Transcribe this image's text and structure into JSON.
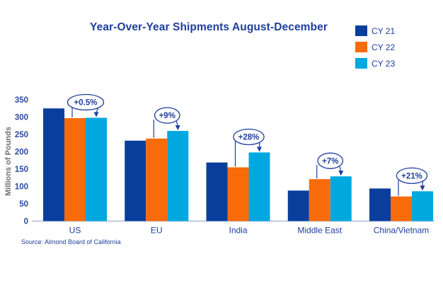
{
  "source": "Source: Almond Board of California",
  "legend": {
    "items": [
      {
        "label": "CY 21",
        "color": "#0a3e9d"
      },
      {
        "label": "CY 22",
        "color": "#f86b0a"
      },
      {
        "label": "CY 23",
        "color": "#00a8e0"
      }
    ]
  },
  "colors": {
    "text_blue": "#1e3e9d",
    "tick_blue": "#2c4a9f",
    "axis_line": "#adb9d8",
    "ylabel_gray": "#6d6e71",
    "annotation_fill": "#ffffff"
  },
  "chart_data": {
    "type": "bar",
    "title": "Year-Over-Year Shipments August-December",
    "categories": [
      "US",
      "EU",
      "India",
      "Middle East",
      "China/Vietnam"
    ],
    "series": [
      {
        "name": "CY 21",
        "color": "#0a3e9d",
        "values": [
          325,
          232,
          169,
          88,
          94
        ]
      },
      {
        "name": "CY 22",
        "color": "#f86b0a",
        "values": [
          297,
          238,
          155,
          121,
          71
        ]
      },
      {
        "name": "CY 23",
        "color": "#00a8e0",
        "values": [
          298,
          260,
          198,
          129,
          86
        ]
      }
    ],
    "annotations": [
      {
        "category": "US",
        "label": "+0.5%"
      },
      {
        "category": "EU",
        "label": "+9%"
      },
      {
        "category": "India",
        "label": "+28%"
      },
      {
        "category": "Middle East",
        "label": "+7%"
      },
      {
        "category": "China/Vietnam",
        "label": "+21%"
      }
    ],
    "xlabel": "",
    "ylabel": "Millions of Pounds",
    "ylim": [
      0,
      350
    ],
    "yticks": [
      0,
      50,
      100,
      150,
      200,
      250,
      300,
      350
    ],
    "grid": false,
    "legend_position": "top-right"
  }
}
